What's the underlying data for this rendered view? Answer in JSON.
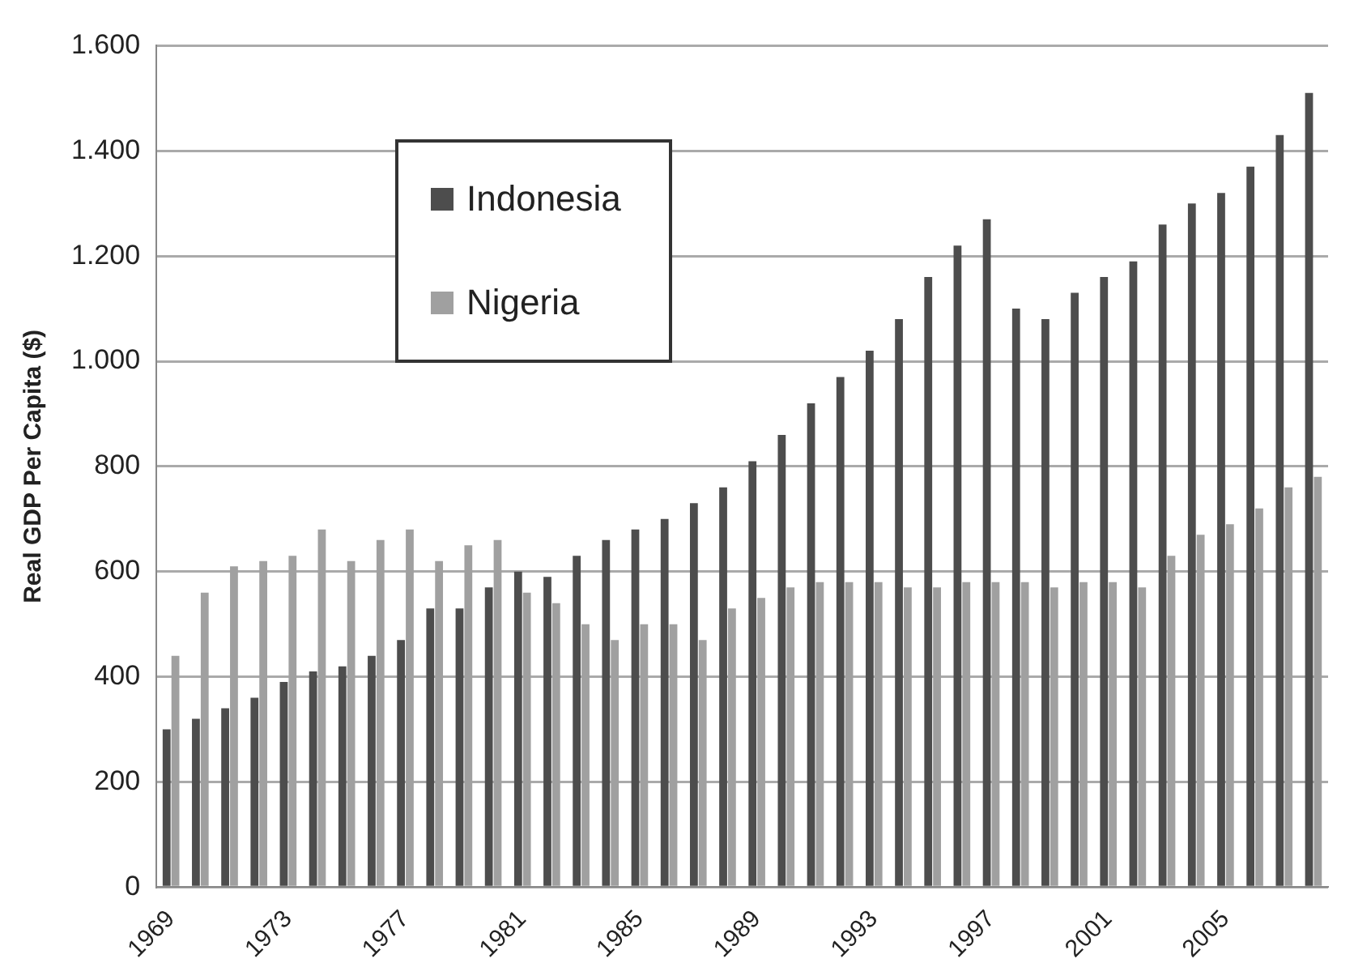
{
  "chart_data": {
    "type": "bar",
    "ylabel": "Real GDP Per Capita ($)",
    "categories": [
      "1969",
      null,
      null,
      null,
      "1973",
      null,
      null,
      null,
      "1977",
      null,
      null,
      null,
      "1981",
      null,
      null,
      null,
      "1985",
      null,
      null,
      null,
      "1989",
      null,
      null,
      null,
      "1993",
      null,
      null,
      null,
      "1997",
      null,
      null,
      null,
      "2001",
      null,
      null,
      null,
      "2005",
      null,
      null,
      null
    ],
    "series": [
      {
        "name": "Indonesia",
        "color": "#4d4d4d",
        "values": [
          300,
          320,
          340,
          360,
          390,
          410,
          420,
          440,
          470,
          530,
          530,
          570,
          600,
          590,
          630,
          660,
          680,
          700,
          730,
          760,
          810,
          860,
          920,
          970,
          1020,
          1080,
          1160,
          1220,
          1270,
          1100,
          1080,
          1130,
          1160,
          1190,
          1260,
          1300,
          1320,
          1370,
          1430,
          1510
        ]
      },
      {
        "name": "Nigeria",
        "color": "#a0a0a0",
        "values": [
          440,
          560,
          610,
          620,
          630,
          680,
          620,
          660,
          680,
          620,
          650,
          660,
          560,
          540,
          500,
          470,
          500,
          500,
          470,
          530,
          550,
          570,
          580,
          580,
          580,
          570,
          570,
          580,
          580,
          580,
          570,
          580,
          580,
          570,
          630,
          670,
          690,
          720,
          760,
          780
        ]
      }
    ],
    "ylim": [
      0,
      1600
    ],
    "yticks": [
      0,
      200,
      400,
      600,
      800,
      {
        "value": 1000,
        "label": "1.000"
      },
      {
        "value": 1200,
        "label": "1.200"
      },
      {
        "value": 1400,
        "label": "1.400"
      },
      {
        "value": 1600,
        "label": "1.600"
      }
    ],
    "grid": "y",
    "legend": "top left"
  }
}
